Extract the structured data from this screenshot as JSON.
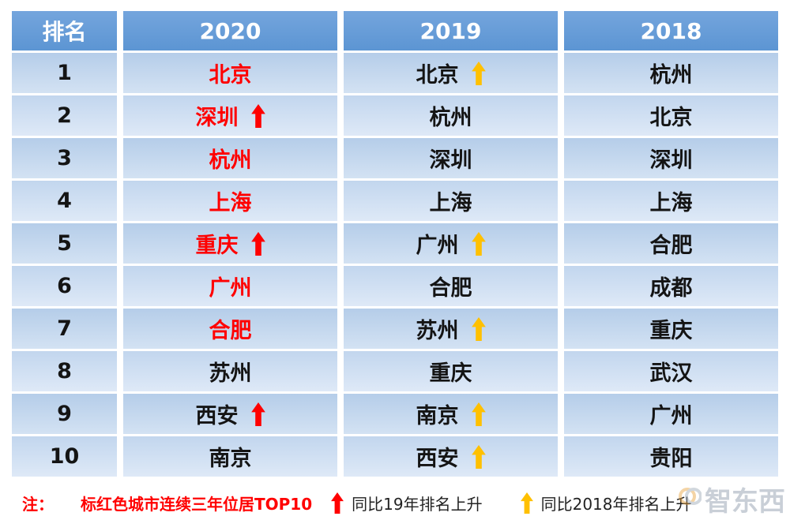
{
  "chart_data": {
    "type": "table",
    "columns": [
      "排名",
      "2020",
      "2019",
      "2018"
    ],
    "rows": [
      {
        "rank": "1",
        "c2020": {
          "city": "北京",
          "red_city": true,
          "arrow": ""
        },
        "c2019": {
          "city": "北京",
          "arrow": "yellow"
        },
        "c2018": {
          "city": "杭州",
          "arrow": ""
        }
      },
      {
        "rank": "2",
        "c2020": {
          "city": "深圳",
          "red_city": true,
          "arrow": "red"
        },
        "c2019": {
          "city": "杭州",
          "arrow": ""
        },
        "c2018": {
          "city": "北京",
          "arrow": ""
        }
      },
      {
        "rank": "3",
        "c2020": {
          "city": "杭州",
          "red_city": true,
          "arrow": ""
        },
        "c2019": {
          "city": "深圳",
          "arrow": ""
        },
        "c2018": {
          "city": "深圳",
          "arrow": ""
        }
      },
      {
        "rank": "4",
        "c2020": {
          "city": "上海",
          "red_city": true,
          "arrow": ""
        },
        "c2019": {
          "city": "上海",
          "arrow": ""
        },
        "c2018": {
          "city": "上海",
          "arrow": ""
        }
      },
      {
        "rank": "5",
        "c2020": {
          "city": "重庆",
          "red_city": true,
          "arrow": "red"
        },
        "c2019": {
          "city": "广州",
          "arrow": "yellow"
        },
        "c2018": {
          "city": "合肥",
          "arrow": ""
        }
      },
      {
        "rank": "6",
        "c2020": {
          "city": "广州",
          "red_city": true,
          "arrow": ""
        },
        "c2019": {
          "city": "合肥",
          "arrow": ""
        },
        "c2018": {
          "city": "成都",
          "arrow": ""
        }
      },
      {
        "rank": "7",
        "c2020": {
          "city": "合肥",
          "red_city": true,
          "arrow": ""
        },
        "c2019": {
          "city": "苏州",
          "arrow": "yellow"
        },
        "c2018": {
          "city": "重庆",
          "arrow": ""
        }
      },
      {
        "rank": "8",
        "c2020": {
          "city": "苏州",
          "red_city": false,
          "arrow": ""
        },
        "c2019": {
          "city": "重庆",
          "arrow": ""
        },
        "c2018": {
          "city": "武汉",
          "arrow": ""
        }
      },
      {
        "rank": "9",
        "c2020": {
          "city": "西安",
          "red_city": false,
          "arrow": "red"
        },
        "c2019": {
          "city": "南京",
          "arrow": "yellow"
        },
        "c2018": {
          "city": "广州",
          "arrow": ""
        }
      },
      {
        "rank": "10",
        "c2020": {
          "city": "南京",
          "red_city": false,
          "arrow": ""
        },
        "c2019": {
          "city": "西安",
          "arrow": "yellow"
        },
        "c2018": {
          "city": "贵阳",
          "arrow": ""
        }
      }
    ],
    "legend": {
      "note_prefix": "注：",
      "red_note": "标红色城市连续三年位居TOP10",
      "red_arrow_label": "同比19年排名上升",
      "yellow_arrow_label": "同比2018年排名上升"
    }
  },
  "colors": {
    "red": "#FF0000",
    "yellow": "#FFC000",
    "header_bg": "#5C95D3",
    "header_text": "#FFFFFF",
    "cell_text": "#141414"
  },
  "watermark": "智东西"
}
